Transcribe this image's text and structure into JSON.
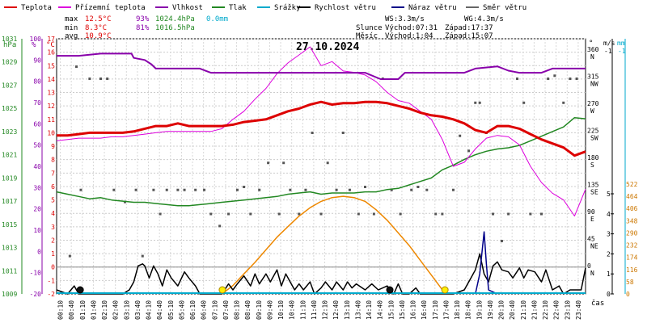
{
  "chart_data": {
    "type": "line",
    "title": "27.10.2024",
    "legend": [
      {
        "label": "Teplota",
        "color": "#dd0000"
      },
      {
        "label": "Přízemní teplota",
        "color": "#dd00dd"
      },
      {
        "label": "Vlhkost",
        "color": "#8800aa"
      },
      {
        "label": "Tlak",
        "color": "#228822"
      },
      {
        "label": "Srážky",
        "color": "#00aacc"
      },
      {
        "label": "Rychlost větru",
        "color": "#000000"
      },
      {
        "label": "Náraz větru",
        "color": "#000088"
      },
      {
        "label": "Směr větru",
        "color": "#666666"
      }
    ],
    "stats": {
      "max": {
        "label": "max",
        "temp": "12.5°C",
        "hum": "93%",
        "press": "1024.4hPa",
        "rain": "0.0mm"
      },
      "min": {
        "label": "min",
        "temp": "8.3°C",
        "hum": "81%",
        "press": "1016.5hPa"
      },
      "avg": {
        "label": "avg",
        "temp": "10.9°C"
      }
    },
    "wind_info": {
      "ws": "WS:3.3m/s",
      "wg": "WG:4.3m/s"
    },
    "sun_info": {
      "label": "Slunce",
      "rise": "Východ:07:31",
      "set": "Západ:17:37"
    },
    "moon_info": {
      "label": "Měsíc",
      "rise": "Východ:1:04",
      "set": "Západ:15:07"
    },
    "axis_units": {
      "hpa": "hPa",
      "pct": "%",
      "degc": "°C",
      "deg": "°",
      "ms": "m/s",
      "mm": "mm",
      "xlabel": "čas"
    },
    "pressure_ticks": [
      "1009",
      "1011",
      "1013",
      "1015",
      "1017",
      "1019",
      "1021",
      "1023",
      "1025",
      "1027",
      "1029",
      "1031"
    ],
    "humidity_ticks": [
      "-20",
      "-10",
      "0",
      "10",
      "20",
      "30",
      "40",
      "50",
      "60",
      "70",
      "80",
      "90",
      "100"
    ],
    "temp_ticks": [
      "-2",
      "-1",
      "0",
      "1",
      "2",
      "3",
      "4",
      "5",
      "6",
      "7",
      "8",
      "9",
      "10",
      "11",
      "12",
      "13",
      "14",
      "15",
      "16",
      "17"
    ],
    "direction_ticks": [
      {
        "deg": "0",
        "dir": "N"
      },
      {
        "deg": "45",
        "dir": "NE"
      },
      {
        "deg": "90",
        "dir": "E"
      },
      {
        "deg": "135",
        "dir": "SE"
      },
      {
        "deg": "180",
        "dir": "S"
      },
      {
        "deg": "225",
        "dir": "SW"
      },
      {
        "deg": "270",
        "dir": "W"
      },
      {
        "deg": "315",
        "dir": "NW"
      },
      {
        "deg": "360",
        "dir": "N"
      }
    ],
    "wind_ticks": [
      "0",
      "1",
      "2",
      "3",
      "4",
      "5"
    ],
    "wind_axis_top": "-1",
    "rain_ticks": [
      "0",
      "58",
      "116",
      "174",
      "232",
      "290",
      "348",
      "406",
      "464",
      "522"
    ],
    "x_ticks": [
      "00:10",
      "00:40",
      "01:10",
      "01:40",
      "02:10",
      "02:40",
      "03:10",
      "03:40",
      "04:10",
      "04:40",
      "05:10",
      "05:40",
      "06:10",
      "06:40",
      "07:10",
      "07:40",
      "08:10",
      "08:40",
      "09:10",
      "09:40",
      "10:10",
      "10:40",
      "11:10",
      "11:40",
      "12:10",
      "12:40",
      "13:10",
      "13:40",
      "14:10",
      "14:40",
      "15:10",
      "15:40",
      "16:10",
      "16:40",
      "17:10",
      "17:40",
      "18:10",
      "18:40",
      "19:10",
      "19:40",
      "20:10",
      "20:40",
      "21:10",
      "21:40",
      "22:10",
      "22:40",
      "23:10",
      "23:40"
    ],
    "xlim_hours": [
      0,
      24
    ],
    "ylim_temp_c": [
      -2,
      17
    ],
    "temperature_c": [
      [
        0,
        9.8
      ],
      [
        0.5,
        9.8
      ],
      [
        1,
        9.9
      ],
      [
        1.5,
        10.0
      ],
      [
        2,
        10.0
      ],
      [
        2.5,
        10.0
      ],
      [
        3,
        10.0
      ],
      [
        3.5,
        10.1
      ],
      [
        4,
        10.3
      ],
      [
        4.5,
        10.5
      ],
      [
        5,
        10.5
      ],
      [
        5.5,
        10.7
      ],
      [
        6,
        10.5
      ],
      [
        6.5,
        10.5
      ],
      [
        7,
        10.5
      ],
      [
        7.5,
        10.5
      ],
      [
        8,
        10.6
      ],
      [
        8.5,
        10.8
      ],
      [
        9,
        10.9
      ],
      [
        9.5,
        11.0
      ],
      [
        10,
        11.3
      ],
      [
        10.5,
        11.6
      ],
      [
        11,
        11.8
      ],
      [
        11.5,
        12.1
      ],
      [
        12,
        12.3
      ],
      [
        12.5,
        12.1
      ],
      [
        13,
        12.2
      ],
      [
        13.5,
        12.2
      ],
      [
        14,
        12.3
      ],
      [
        14.5,
        12.3
      ],
      [
        15,
        12.2
      ],
      [
        15.5,
        12.0
      ],
      [
        16,
        11.8
      ],
      [
        16.5,
        11.5
      ],
      [
        17,
        11.3
      ],
      [
        17.5,
        11.2
      ],
      [
        18,
        11.0
      ],
      [
        18.5,
        10.7
      ],
      [
        19,
        10.2
      ],
      [
        19.5,
        10.0
      ],
      [
        20,
        10.5
      ],
      [
        20.5,
        10.5
      ],
      [
        21,
        10.3
      ],
      [
        21.5,
        9.9
      ],
      [
        22,
        9.5
      ],
      [
        22.5,
        9.2
      ],
      [
        23,
        8.9
      ],
      [
        23.5,
        8.3
      ],
      [
        24,
        8.6
      ]
    ],
    "ground_temperature_c": [
      [
        0,
        9.4
      ],
      [
        0.5,
        9.5
      ],
      [
        1,
        9.6
      ],
      [
        1.5,
        9.6
      ],
      [
        2,
        9.6
      ],
      [
        2.5,
        9.7
      ],
      [
        3,
        9.7
      ],
      [
        3.5,
        9.8
      ],
      [
        4,
        9.9
      ],
      [
        4.5,
        10.0
      ],
      [
        5,
        10.1
      ],
      [
        5.5,
        10.1
      ],
      [
        6,
        10.1
      ],
      [
        6.5,
        10.1
      ],
      [
        7,
        10.1
      ],
      [
        7.5,
        10.3
      ],
      [
        8,
        11.0
      ],
      [
        8.5,
        11.6
      ],
      [
        9,
        12.5
      ],
      [
        9.5,
        13.3
      ],
      [
        10,
        14.4
      ],
      [
        10.5,
        15.2
      ],
      [
        11,
        15.8
      ],
      [
        11.5,
        16.4
      ],
      [
        12,
        15.0
      ],
      [
        12.5,
        15.3
      ],
      [
        13,
        14.6
      ],
      [
        13.5,
        14.5
      ],
      [
        14,
        14.3
      ],
      [
        14.5,
        13.8
      ],
      [
        15,
        13.0
      ],
      [
        15.5,
        12.4
      ],
      [
        16,
        12.2
      ],
      [
        16.5,
        11.6
      ],
      [
        17,
        11.0
      ],
      [
        17.5,
        9.5
      ],
      [
        18,
        7.5
      ],
      [
        18.5,
        7.8
      ],
      [
        19,
        8.8
      ],
      [
        19.5,
        9.6
      ],
      [
        20,
        9.8
      ],
      [
        20.5,
        9.7
      ],
      [
        21,
        9.1
      ],
      [
        21.5,
        7.5
      ],
      [
        22,
        6.3
      ],
      [
        22.5,
        5.5
      ],
      [
        23,
        5.0
      ],
      [
        23.5,
        3.8
      ],
      [
        24,
        5.8
      ]
    ],
    "ylim_humidity_pct": [
      -20,
      100
    ],
    "humidity_pct": [
      [
        0,
        92
      ],
      [
        1,
        92
      ],
      [
        2,
        93
      ],
      [
        3,
        93
      ],
      [
        3.4,
        93
      ],
      [
        3.5,
        91
      ],
      [
        4,
        90
      ],
      [
        4.3,
        88
      ],
      [
        4.5,
        86
      ],
      [
        5,
        86
      ],
      [
        5.5,
        86
      ],
      [
        6,
        86
      ],
      [
        6.5,
        86
      ],
      [
        7,
        84
      ],
      [
        7.5,
        84
      ],
      [
        8,
        84
      ],
      [
        9,
        84
      ],
      [
        10,
        84
      ],
      [
        11,
        84
      ],
      [
        12,
        84
      ],
      [
        13,
        84
      ],
      [
        14,
        84
      ],
      [
        14.7,
        81
      ],
      [
        15.5,
        81
      ],
      [
        15.8,
        84
      ],
      [
        16,
        84
      ],
      [
        17,
        84
      ],
      [
        18,
        84
      ],
      [
        18.5,
        84
      ],
      [
        19,
        86
      ],
      [
        20,
        87
      ],
      [
        20.5,
        85
      ],
      [
        21,
        84
      ],
      [
        21.5,
        84
      ],
      [
        22,
        84
      ],
      [
        22.5,
        86
      ],
      [
        23,
        86
      ],
      [
        23.5,
        86
      ],
      [
        24,
        86
      ]
    ],
    "ylim_pressure_hpa": [
      1009,
      1031
    ],
    "pressure_hpa": [
      [
        0,
        1017.8
      ],
      [
        0.5,
        1017.6
      ],
      [
        1,
        1017.4
      ],
      [
        1.5,
        1017.2
      ],
      [
        2,
        1017.3
      ],
      [
        2.5,
        1017.1
      ],
      [
        3,
        1017.0
      ],
      [
        3.5,
        1016.9
      ],
      [
        4,
        1016.9
      ],
      [
        4.5,
        1016.8
      ],
      [
        5,
        1016.7
      ],
      [
        5.5,
        1016.6
      ],
      [
        6,
        1016.6
      ],
      [
        6.5,
        1016.7
      ],
      [
        7,
        1016.8
      ],
      [
        7.5,
        1016.9
      ],
      [
        8,
        1017.0
      ],
      [
        8.5,
        1017.1
      ],
      [
        9,
        1017.2
      ],
      [
        9.5,
        1017.3
      ],
      [
        10,
        1017.4
      ],
      [
        10.5,
        1017.6
      ],
      [
        11,
        1017.7
      ],
      [
        11.5,
        1017.8
      ],
      [
        12,
        1017.6
      ],
      [
        12.5,
        1017.7
      ],
      [
        13,
        1017.7
      ],
      [
        13.5,
        1017.7
      ],
      [
        14,
        1017.8
      ],
      [
        14.5,
        1017.8
      ],
      [
        15,
        1018.0
      ],
      [
        15.5,
        1018.1
      ],
      [
        16,
        1018.4
      ],
      [
        16.5,
        1018.7
      ],
      [
        17,
        1019.0
      ],
      [
        17.5,
        1019.7
      ],
      [
        18,
        1020.1
      ],
      [
        18.5,
        1020.6
      ],
      [
        19,
        1021.0
      ],
      [
        19.5,
        1021.3
      ],
      [
        20,
        1021.5
      ],
      [
        20.5,
        1021.6
      ],
      [
        21,
        1021.8
      ],
      [
        21.5,
        1022.2
      ],
      [
        22,
        1022.6
      ],
      [
        22.5,
        1023.0
      ],
      [
        23,
        1023.4
      ],
      [
        23.5,
        1024.2
      ],
      [
        24,
        1024.1
      ]
    ],
    "ylim_wind_ms": [
      0,
      5
    ],
    "wind_speed_ms": [
      [
        0,
        0.2
      ],
      [
        0.5,
        0.0
      ],
      [
        0.8,
        0.4
      ],
      [
        1,
        0.0
      ],
      [
        1.5,
        0.0
      ],
      [
        2,
        0.0
      ],
      [
        2.5,
        0.0
      ],
      [
        3,
        0.0
      ],
      [
        3.3,
        0.2
      ],
      [
        3.5,
        0.6
      ],
      [
        3.7,
        1.4
      ],
      [
        3.9,
        1.5
      ],
      [
        4,
        1.4
      ],
      [
        4.2,
        0.8
      ],
      [
        4.4,
        1.4
      ],
      [
        4.6,
        1.0
      ],
      [
        4.8,
        0.4
      ],
      [
        5,
        1.2
      ],
      [
        5.2,
        0.8
      ],
      [
        5.5,
        0.4
      ],
      [
        5.8,
        1.1
      ],
      [
        6,
        0.8
      ],
      [
        6.3,
        0.4
      ],
      [
        6.5,
        0.0
      ],
      [
        7,
        0.0
      ],
      [
        7.5,
        0.0
      ],
      [
        7.8,
        0.5
      ],
      [
        8,
        0.2
      ],
      [
        8.2,
        0.5
      ],
      [
        8.5,
        0.9
      ],
      [
        8.8,
        0.4
      ],
      [
        9,
        1.0
      ],
      [
        9.2,
        0.5
      ],
      [
        9.5,
        1.0
      ],
      [
        9.7,
        0.6
      ],
      [
        10,
        1.2
      ],
      [
        10.2,
        0.4
      ],
      [
        10.4,
        1.0
      ],
      [
        10.6,
        0.6
      ],
      [
        10.8,
        0.2
      ],
      [
        11,
        0.5
      ],
      [
        11.2,
        0.2
      ],
      [
        11.5,
        0.6
      ],
      [
        11.7,
        0.0
      ],
      [
        12,
        0.3
      ],
      [
        12.2,
        0.6
      ],
      [
        12.5,
        0.2
      ],
      [
        12.7,
        0.6
      ],
      [
        13,
        0.2
      ],
      [
        13.2,
        0.6
      ],
      [
        13.4,
        0.3
      ],
      [
        13.6,
        0.5
      ],
      [
        14,
        0.2
      ],
      [
        14.3,
        0.5
      ],
      [
        14.6,
        0.2
      ],
      [
        15,
        0.4
      ],
      [
        15.3,
        0.0
      ],
      [
        15.5,
        0.5
      ],
      [
        15.7,
        0.0
      ],
      [
        16,
        0.0
      ],
      [
        16.3,
        0.3
      ],
      [
        16.5,
        0.0
      ],
      [
        17,
        0.0
      ],
      [
        17.5,
        0.0
      ],
      [
        18,
        0.0
      ],
      [
        18.5,
        0.2
      ],
      [
        18.8,
        0.8
      ],
      [
        19,
        1.2
      ],
      [
        19.2,
        2.0
      ],
      [
        19.4,
        1.0
      ],
      [
        19.6,
        0.6
      ],
      [
        19.8,
        1.4
      ],
      [
        20,
        1.6
      ],
      [
        20.2,
        1.2
      ],
      [
        20.5,
        1.1
      ],
      [
        20.7,
        0.8
      ],
      [
        21,
        1.3
      ],
      [
        21.2,
        0.8
      ],
      [
        21.4,
        1.2
      ],
      [
        21.7,
        1.1
      ],
      [
        22,
        0.6
      ],
      [
        22.2,
        1.2
      ],
      [
        22.5,
        0.2
      ],
      [
        22.8,
        0.4
      ],
      [
        23,
        0.0
      ],
      [
        23.3,
        0.2
      ],
      [
        23.6,
        0.2
      ],
      [
        23.8,
        0.2
      ],
      [
        24,
        1.3
      ]
    ],
    "wind_gust_ms": [
      [
        19,
        0.0
      ],
      [
        19.2,
        1.0
      ],
      [
        19.4,
        3.1
      ],
      [
        19.5,
        1.5
      ],
      [
        19.6,
        0.2
      ],
      [
        20,
        0.0
      ]
    ],
    "rain_mm": 0.0,
    "wind_direction_deg": [
      [
        0.6,
        20
      ],
      [
        0.9,
        335
      ],
      [
        1.1,
        130
      ],
      [
        1.5,
        315
      ],
      [
        2,
        315
      ],
      [
        2.3,
        315
      ],
      [
        2.6,
        130
      ],
      [
        3.1,
        110
      ],
      [
        3.6,
        130
      ],
      [
        3.9,
        20
      ],
      [
        4.4,
        130
      ],
      [
        4.7,
        90
      ],
      [
        5,
        130
      ],
      [
        5.5,
        130
      ],
      [
        5.8,
        130
      ],
      [
        6.3,
        130
      ],
      [
        6.7,
        130
      ],
      [
        7,
        90
      ],
      [
        7.4,
        70
      ],
      [
        7.8,
        90
      ],
      [
        8.2,
        130
      ],
      [
        8.5,
        135
      ],
      [
        8.8,
        90
      ],
      [
        9.2,
        130
      ],
      [
        9.6,
        175
      ],
      [
        10.1,
        90
      ],
      [
        10.3,
        175
      ],
      [
        10.6,
        130
      ],
      [
        11,
        90
      ],
      [
        11.3,
        130
      ],
      [
        11.6,
        225
      ],
      [
        12,
        90
      ],
      [
        12.3,
        175
      ],
      [
        12.7,
        130
      ],
      [
        13,
        225
      ],
      [
        13.3,
        130
      ],
      [
        13.7,
        90
      ],
      [
        14,
        135
      ],
      [
        14.4,
        90
      ],
      [
        14.8,
        315
      ],
      [
        15.2,
        130
      ],
      [
        15.6,
        90
      ],
      [
        16.1,
        130
      ],
      [
        16.4,
        135
      ],
      [
        16.8,
        130
      ],
      [
        17.2,
        90
      ],
      [
        17.5,
        90
      ],
      [
        18,
        130
      ],
      [
        18.3,
        220
      ],
      [
        18.7,
        195
      ],
      [
        19,
        275
      ],
      [
        19.2,
        275
      ],
      [
        19.5,
        225
      ],
      [
        19.8,
        90
      ],
      [
        20.2,
        45
      ],
      [
        20.5,
        90
      ],
      [
        20.9,
        315
      ],
      [
        21.2,
        275
      ],
      [
        21.5,
        90
      ],
      [
        22,
        90
      ],
      [
        22.3,
        315
      ],
      [
        22.6,
        320
      ],
      [
        23,
        275
      ],
      [
        23.3,
        315
      ],
      [
        23.6,
        315
      ]
    ],
    "sun_path_rain_axis": [
      [
        7.5,
        0
      ],
      [
        8,
        40
      ],
      [
        8.5,
        95
      ],
      [
        9,
        150
      ],
      [
        9.5,
        210
      ],
      [
        10,
        270
      ],
      [
        10.5,
        320
      ],
      [
        11,
        370
      ],
      [
        11.5,
        410
      ],
      [
        12,
        440
      ],
      [
        12.5,
        458
      ],
      [
        13,
        464
      ],
      [
        13.5,
        458
      ],
      [
        14,
        440
      ],
      [
        14.5,
        400
      ],
      [
        15,
        350
      ],
      [
        15.5,
        290
      ],
      [
        16,
        230
      ],
      [
        16.5,
        160
      ],
      [
        17,
        90
      ],
      [
        17.5,
        20
      ],
      [
        17.6,
        0
      ]
    ],
    "sun_markers": [
      7.52,
      17.62
    ],
    "moon_markers": [
      1.07,
      15.12
    ]
  }
}
